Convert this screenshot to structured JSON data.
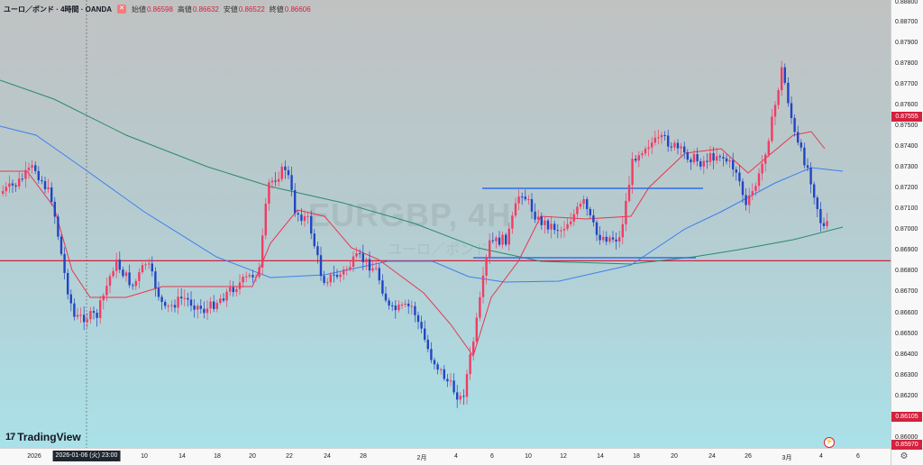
{
  "header": {
    "title": "ユーロ／ポンド · 4時間 · OANDA",
    "open_label": "始値",
    "open": "0.86598",
    "high_label": "高値",
    "high": "0.86632",
    "low_label": "安値",
    "low": "0.86522",
    "close_label": "終値",
    "close": "0.86606"
  },
  "watermark": {
    "symbol": "EURGBP, 4H",
    "subtitle": "ユーロ／ポンド"
  },
  "brand": {
    "mark": "17",
    "name": "TradingView"
  },
  "crosshair": {
    "date_label": "2026-01-06 (火)  23:00"
  },
  "price_tags": {
    "resistance": "0.87555",
    "support": "0.86105",
    "current": "0.85970"
  },
  "icons": {
    "settings": "gear-icon",
    "alert": "bolt-icon"
  },
  "colors": {
    "bull": "#f23b63",
    "bear": "#2245c4",
    "ma_short": "#e8364f",
    "ma_mid": "#3d7ff0",
    "ma_long": "#2a8a6a",
    "level_line": "#d4213d",
    "drawn_line": "#2f6ee8"
  },
  "chart_data": {
    "type": "candlestick",
    "symbol": "EURGBP",
    "timeframe": "4時間",
    "ylim": [
      0.8597,
      0.888
    ],
    "y_ticks": [
      "0.88800",
      "0.88700",
      "0.87900",
      "0.87800",
      "0.87700",
      "0.87600",
      "0.87500",
      "0.87400",
      "0.87300",
      "0.87200",
      "0.87100",
      "0.87000",
      "0.86900",
      "0.86800",
      "0.86700",
      "0.86600",
      "0.86500",
      "0.86400",
      "0.86300",
      "0.86200",
      "0.86000"
    ],
    "x_ticks": [
      "2026",
      "10",
      "14",
      "18",
      "20",
      "22",
      "24",
      "28",
      "2月",
      "4",
      "6",
      "10",
      "12",
      "14",
      "18",
      "20",
      "24",
      "26",
      "3月",
      "4",
      "6"
    ],
    "horizontal_levels": [
      0.87555,
      0.86105,
      0.8597
    ],
    "drawn_lines": [
      {
        "from": [
          0.8722,
          "2/6"
        ],
        "to": [
          0.8722,
          "2/22"
        ]
      },
      {
        "from": [
          0.8688,
          "2/5"
        ],
        "to": [
          0.8688,
          "2/23"
        ]
      }
    ]
  }
}
